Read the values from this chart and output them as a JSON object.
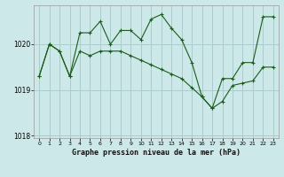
{
  "title": "Graphe pression niveau de la mer (hPa)",
  "bg_color": "#cce8e8",
  "grid_color": "#aacccc",
  "line_color": "#1a5c1a",
  "xlim": [
    -0.5,
    23.5
  ],
  "ylim": [
    1017.95,
    1020.85
  ],
  "yticks": [
    1018,
    1019,
    1020
  ],
  "xticks": [
    0,
    1,
    2,
    3,
    4,
    5,
    6,
    7,
    8,
    9,
    10,
    11,
    12,
    13,
    14,
    15,
    16,
    17,
    18,
    19,
    20,
    21,
    22,
    23
  ],
  "series1": [
    1019.3,
    1020.0,
    1019.85,
    1019.3,
    1020.25,
    1020.25,
    1020.5,
    1020.0,
    1020.3,
    1020.3,
    1020.1,
    1020.55,
    1020.65,
    1020.35,
    1020.1,
    1019.6,
    1018.85,
    1018.6,
    1019.25,
    1019.25,
    1019.6,
    1019.6,
    1020.6,
    1020.6
  ],
  "series2": [
    1019.3,
    1020.0,
    1019.85,
    1019.3,
    1019.85,
    1019.75,
    1019.85,
    1019.85,
    1019.85,
    1019.75,
    1019.65,
    1019.55,
    1019.45,
    1019.35,
    1019.25,
    1019.05,
    1018.85,
    1018.6,
    1018.75,
    1019.1,
    1019.15,
    1019.2,
    1019.5,
    1019.5
  ]
}
